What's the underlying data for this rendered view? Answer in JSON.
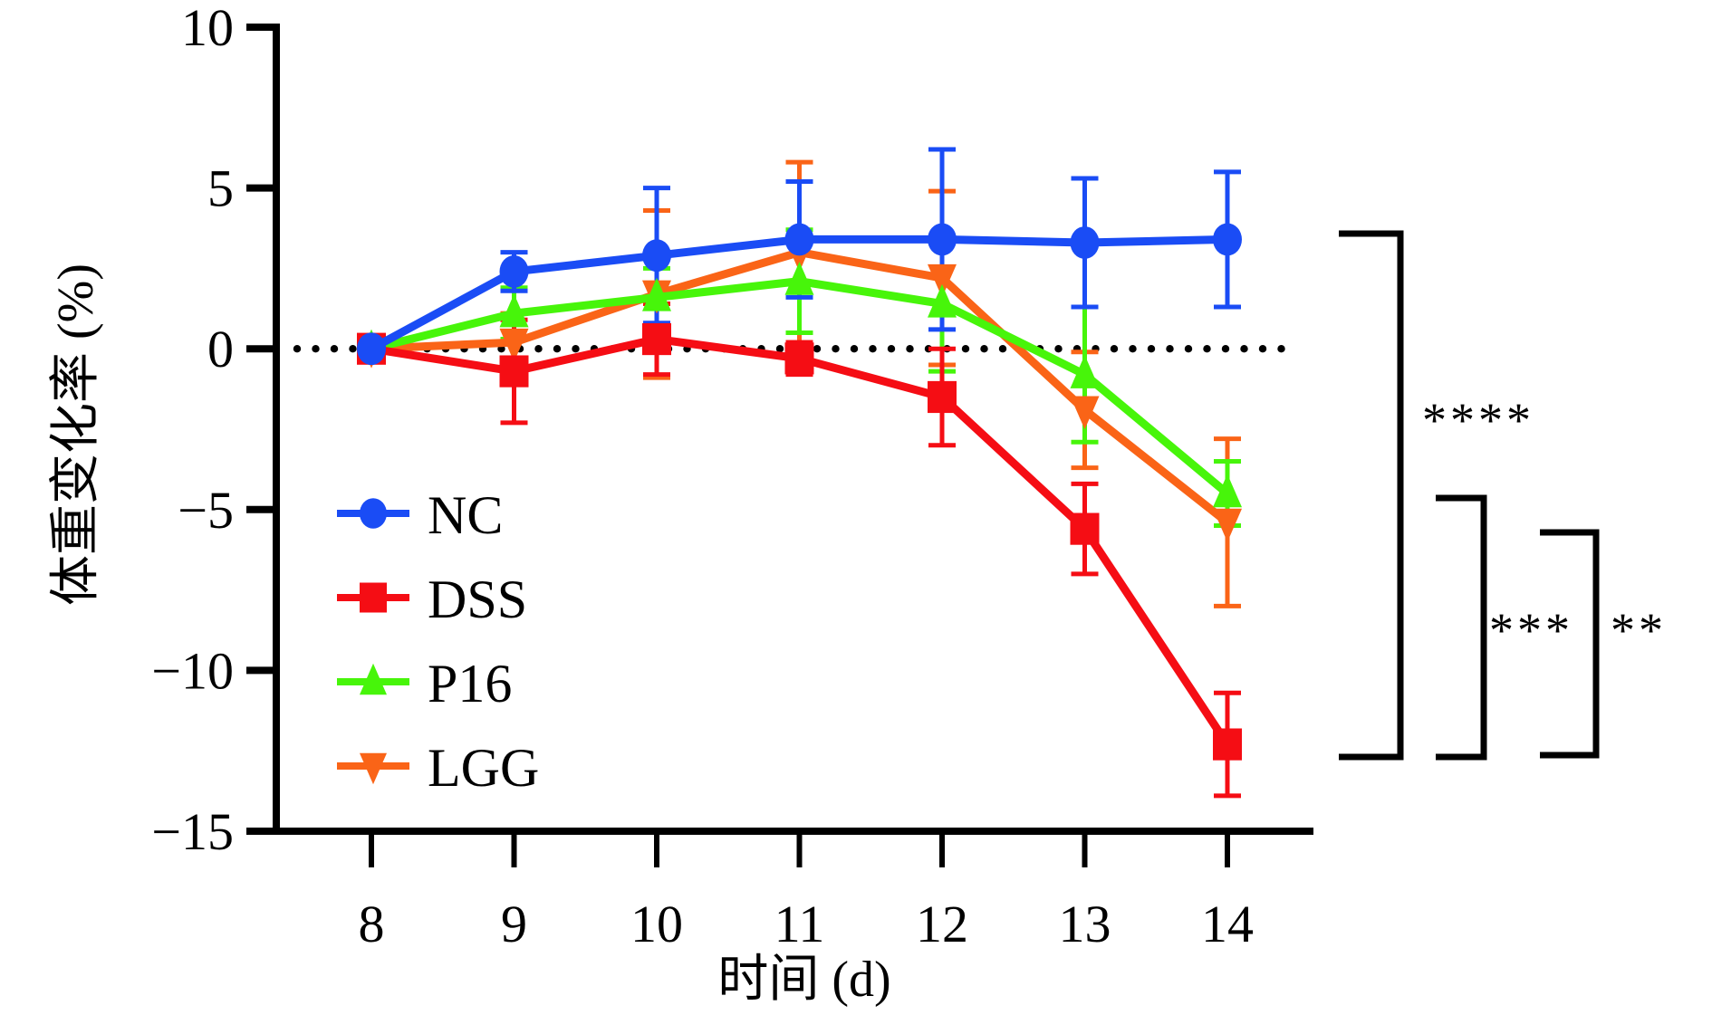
{
  "chart_data": {
    "type": "line",
    "title": "",
    "xlabel": "时间 (d)",
    "ylabel": "体重变化率 (%)",
    "x": [
      8,
      9,
      10,
      11,
      12,
      13,
      14
    ],
    "x_tick_labels": [
      "8",
      "9",
      "10",
      "11",
      "12",
      "13",
      "14"
    ],
    "xlim": [
      8,
      14
    ],
    "ylim": [
      -15,
      10
    ],
    "y_ticks": [
      10,
      5,
      0,
      -5,
      -10,
      -15
    ],
    "y_tick_labels": [
      "10",
      "5",
      "0",
      "−5",
      "−10",
      "−15"
    ],
    "reference_line": {
      "y": 0,
      "style": "dotted"
    },
    "grid": false,
    "legend_position": "lower-left",
    "series": [
      {
        "name": "NC",
        "marker": "circle",
        "color": "#1a4cf5",
        "values": [
          0,
          2.4,
          2.9,
          3.4,
          3.4,
          3.3,
          3.4
        ],
        "error": [
          0,
          0.6,
          2.1,
          1.8,
          2.8,
          2.0,
          2.1
        ]
      },
      {
        "name": "DSS",
        "marker": "square",
        "color": "#f50d14",
        "values": [
          0,
          -0.7,
          0.3,
          -0.3,
          -1.5,
          -5.6,
          -12.3
        ],
        "error": [
          0,
          1.6,
          1.1,
          0.5,
          1.5,
          1.4,
          1.6
        ]
      },
      {
        "name": "P16",
        "marker": "triangle-up",
        "color": "#47f50a",
        "values": [
          0,
          1.1,
          1.6,
          2.1,
          1.4,
          -0.8,
          -4.5
        ],
        "error": [
          0,
          0.8,
          0.9,
          1.6,
          2.1,
          2.1,
          1.0
        ]
      },
      {
        "name": "LGG",
        "marker": "triangle-down",
        "color": "#fa6417",
        "values": [
          0,
          0.2,
          1.7,
          3.0,
          2.2,
          -1.9,
          -5.4
        ],
        "error": [
          0,
          0.9,
          2.6,
          2.8,
          2.7,
          1.8,
          2.6
        ]
      }
    ],
    "annotations": [
      {
        "type": "significance-bracket",
        "between": [
          "NC",
          "DSS"
        ],
        "label": "****"
      },
      {
        "type": "significance-bracket",
        "between": [
          "P16",
          "DSS"
        ],
        "label": "***"
      },
      {
        "type": "significance-bracket",
        "between": [
          "LGG",
          "DSS"
        ],
        "label": "**"
      }
    ]
  }
}
